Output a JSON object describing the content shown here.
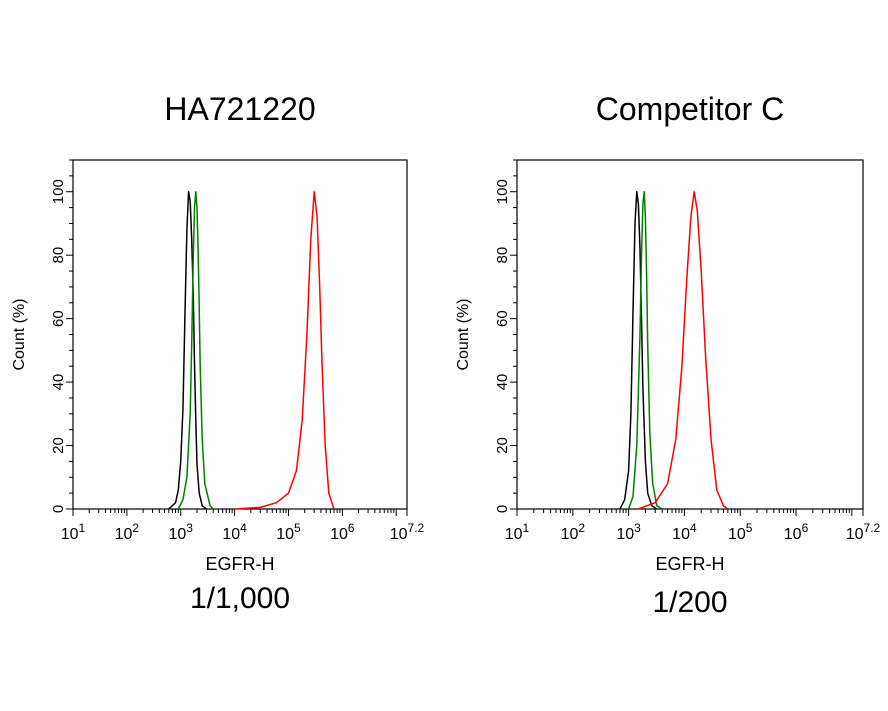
{
  "chart_data": [
    {
      "type": "line",
      "title": "HA721220",
      "subtitle": "1/1,000",
      "xlabel": "EGFR-H",
      "ylabel": "Count  (%)",
      "x_scale": "log10",
      "xlim": [
        10,
        15848932
      ],
      "ylim": [
        0,
        110
      ],
      "x_ticks": [
        {
          "base": "10",
          "exp": "1",
          "value": 10
        },
        {
          "base": "10",
          "exp": "2",
          "value": 100
        },
        {
          "base": "10",
          "exp": "3",
          "value": 1000
        },
        {
          "base": "10",
          "exp": "4",
          "value": 10000
        },
        {
          "base": "10",
          "exp": "5",
          "value": 100000
        },
        {
          "base": "10",
          "exp": "6",
          "value": 1000000
        },
        {
          "base": "10",
          "exp": "7.2",
          "value": 15848932
        }
      ],
      "y_ticks": [
        "0",
        "20",
        "40",
        "60",
        "80",
        "100"
      ],
      "series": [
        {
          "color": "#000000",
          "x": [
            600,
            800,
            900,
            1000,
            1100,
            1200,
            1300,
            1400,
            1500,
            1600,
            1700,
            1800,
            1900,
            2000,
            2200,
            2500,
            3000
          ],
          "y": [
            0,
            2,
            6,
            15,
            32,
            62,
            88,
            100,
            97,
            85,
            68,
            46,
            28,
            14,
            5,
            1,
            0
          ]
        },
        {
          "color": "#008000",
          "x": [
            900,
            1100,
            1300,
            1500,
            1600,
            1700,
            1800,
            1900,
            2000,
            2100,
            2200,
            2300,
            2500,
            2800,
            3500,
            4000
          ],
          "y": [
            0,
            3,
            10,
            30,
            52,
            78,
            95,
            100,
            95,
            82,
            64,
            45,
            22,
            8,
            1,
            0
          ]
        },
        {
          "color": "#ff0000",
          "x": [
            10000,
            30000,
            60000,
            100000,
            140000,
            180000,
            220000,
            260000,
            300000,
            340000,
            380000,
            420000,
            480000,
            560000,
            700000
          ],
          "y": [
            0,
            0.5,
            2,
            5,
            12,
            28,
            55,
            85,
            100,
            92,
            70,
            45,
            20,
            5,
            0
          ]
        }
      ]
    },
    {
      "type": "line",
      "title": "Competitor C",
      "subtitle": "1/200",
      "xlabel": "EGFR-H",
      "ylabel": "Count  (%)",
      "x_scale": "log10",
      "xlim": [
        10,
        15848932
      ],
      "ylim": [
        0,
        110
      ],
      "x_ticks": [
        {
          "base": "10",
          "exp": "1",
          "value": 10
        },
        {
          "base": "10",
          "exp": "2",
          "value": 100
        },
        {
          "base": "10",
          "exp": "3",
          "value": 1000
        },
        {
          "base": "10",
          "exp": "4",
          "value": 10000
        },
        {
          "base": "10",
          "exp": "5",
          "value": 100000
        },
        {
          "base": "10",
          "exp": "6",
          "value": 1000000
        },
        {
          "base": "10",
          "exp": "7.2",
          "value": 15848932
        }
      ],
      "y_ticks": [
        "0",
        "20",
        "40",
        "60",
        "80",
        "100"
      ],
      "series": [
        {
          "color": "#000000",
          "x": [
            700,
            850,
            1000,
            1100,
            1200,
            1300,
            1400,
            1500,
            1600,
            1700,
            1800,
            2000,
            2200,
            2600,
            3200
          ],
          "y": [
            0,
            3,
            12,
            30,
            62,
            90,
            100,
            96,
            82,
            60,
            38,
            15,
            5,
            1,
            0
          ]
        },
        {
          "color": "#008000",
          "x": [
            1000,
            1200,
            1400,
            1600,
            1700,
            1800,
            1900,
            2000,
            2100,
            2200,
            2400,
            2700,
            3200,
            4000
          ],
          "y": [
            0,
            4,
            20,
            55,
            80,
            96,
            100,
            92,
            74,
            52,
            24,
            8,
            1,
            0
          ]
        },
        {
          "color": "#ff0000",
          "x": [
            1500,
            3000,
            5000,
            7000,
            9000,
            11000,
            13000,
            15000,
            17000,
            20000,
            24000,
            30000,
            38000,
            50000,
            60000
          ],
          "y": [
            0,
            2,
            8,
            22,
            45,
            72,
            92,
            100,
            94,
            75,
            48,
            22,
            6,
            1,
            0
          ]
        }
      ]
    }
  ]
}
